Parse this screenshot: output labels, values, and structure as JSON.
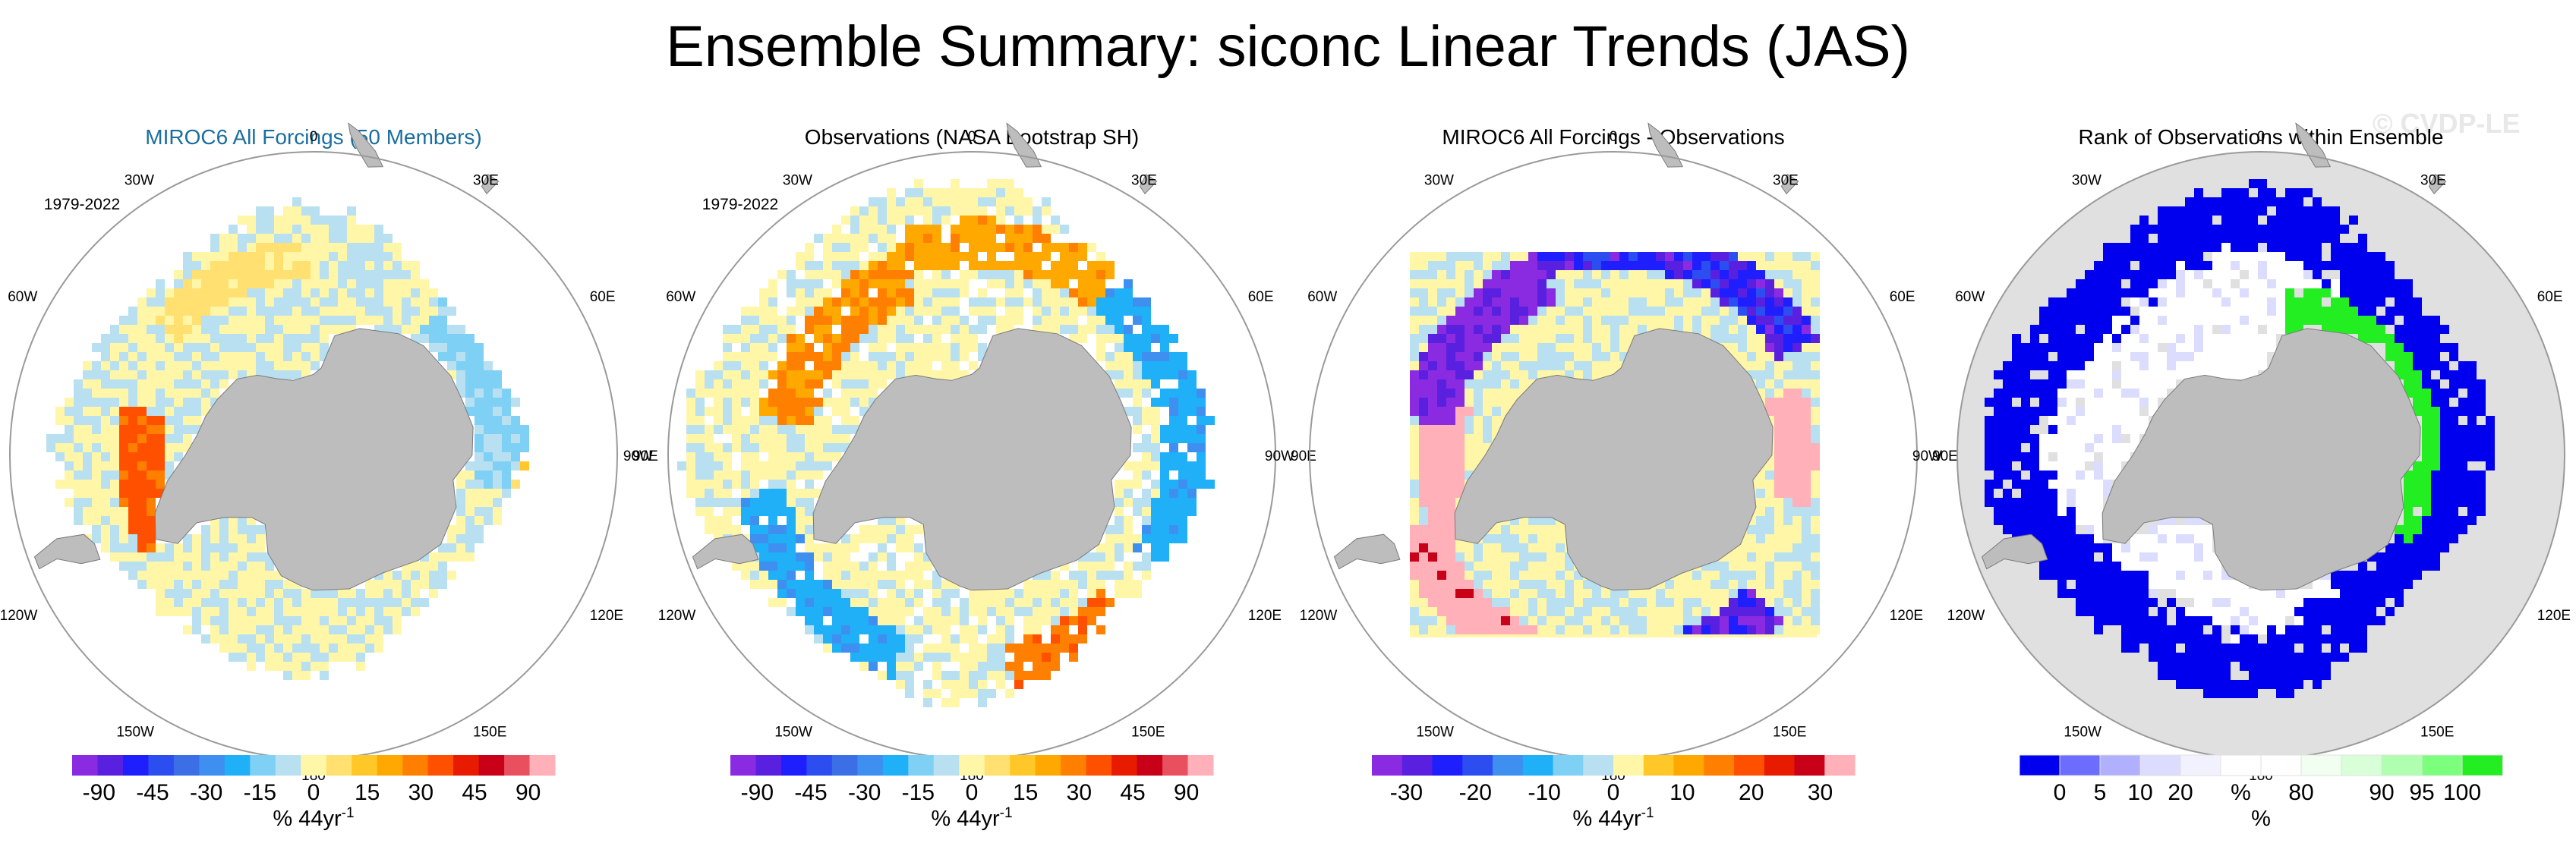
{
  "title": "Ensemble Summary: siconc Linear Trends (JAS)",
  "watermark": "© CVDP-LE",
  "colors": {
    "land": "#bdbdbd",
    "circle": "#9a9a9a",
    "title_blue": "#1a6e9e",
    "panel4_background": "#e0e0e0"
  },
  "chart_data": [
    {
      "type": "heatmap",
      "title": "MIROC6 All Forcings (50 Members)",
      "title_color": "#1a6e9e",
      "period": "1979-2022",
      "longitude_labels": [
        "0",
        "30E",
        "60E",
        "90E",
        "120E",
        "150E",
        "180",
        "150W",
        "120W",
        "90W",
        "60W",
        "30W"
      ],
      "colorbar": {
        "colors": [
          "#8a2be2",
          "#5a20e0",
          "#1e1eff",
          "#2c4ef0",
          "#3c6fe6",
          "#3e8ff0",
          "#20b0f8",
          "#7fd0f5",
          "#b8e0f0",
          "#fff6a8",
          "#ffe070",
          "#ffc828",
          "#ffa800",
          "#ff8000",
          "#ff5000",
          "#e81a00",
          "#c80018",
          "#e85060",
          "#ffb0b8"
        ],
        "tick_labels": [
          "-90",
          "-45",
          "-30",
          "-15",
          "0",
          "15",
          "30",
          "45",
          "90"
        ],
        "label": "% 44yr",
        "label_superscript": "-1"
      },
      "field": {
        "background": "none",
        "base_value": 0,
        "zones": [
          {
            "lat_min": -68,
            "lat_max": -61,
            "lon_min": 255,
            "lon_max": 300,
            "value": 45
          },
          {
            "lat_min": -66,
            "lat_max": -58,
            "lon_min": 80,
            "lon_max": 140,
            "value": -15
          },
          {
            "lat_min": -60,
            "lat_max": -55,
            "lon_min": 60,
            "lon_max": 90,
            "value": 15
          },
          {
            "lat_min": -64,
            "lat_max": -58,
            "lon_min": 180,
            "lon_max": 230,
            "value": 8
          }
        ]
      }
    },
    {
      "type": "heatmap",
      "title": "Observations (NASA Bootstrap SH)",
      "title_color": "#000000",
      "period": "1979-2022",
      "longitude_labels": [
        "0",
        "30E",
        "60E",
        "90E",
        "120E",
        "150E",
        "180",
        "150W",
        "120W",
        "90W",
        "60W",
        "30W"
      ],
      "colorbar": {
        "colors": [
          "#8a2be2",
          "#5a20e0",
          "#1e1eff",
          "#2c4ef0",
          "#3c6fe6",
          "#3e8ff0",
          "#20b0f8",
          "#7fd0f5",
          "#b8e0f0",
          "#fff6a8",
          "#ffe070",
          "#ffc828",
          "#ffa800",
          "#ff8000",
          "#ff5000",
          "#e81a00",
          "#c80018",
          "#e85060",
          "#ffb0b8"
        ],
        "tick_labels": [
          "-90",
          "-45",
          "-30",
          "-15",
          "0",
          "15",
          "30",
          "45",
          "90"
        ],
        "label": "% 44yr",
        "label_superscript": "-1"
      },
      "field": {
        "background": "none",
        "base_value": 0,
        "zones": [
          {
            "lat_min": -62,
            "lat_max": -54,
            "lon_min": 10,
            "lon_max": 45,
            "value": 40
          },
          {
            "lat_min": -62,
            "lat_max": -54,
            "lon_min": 60,
            "lon_max": 140,
            "value": -30
          },
          {
            "lat_min": -62,
            "lat_max": -55,
            "lon_min": 140,
            "lon_max": 200,
            "value": 30
          },
          {
            "lat_min": -66,
            "lat_max": -58,
            "lon_min": 200,
            "lon_max": 260,
            "value": 35
          },
          {
            "lat_min": -62,
            "lat_max": -55,
            "lon_min": 280,
            "lon_max": 340,
            "value": -30
          }
        ]
      }
    },
    {
      "type": "heatmap",
      "title": "MIROC6 All Forcings - Observations",
      "title_color": "#000000",
      "longitude_labels": [
        "0",
        "30E",
        "60E",
        "90E",
        "120E",
        "150E",
        "180",
        "150W",
        "120W",
        "90W",
        "60W",
        "30W"
      ],
      "colorbar": {
        "colors": [
          "#8a2be2",
          "#5a20e0",
          "#1e1eff",
          "#2c4ef0",
          "#3e8ff0",
          "#20b0f8",
          "#7fd0f5",
          "#b8e0f0",
          "#fff6a8",
          "#ffc828",
          "#ffa800",
          "#ff8000",
          "#ff5000",
          "#e81a00",
          "#c80018",
          "#ffb0b8"
        ],
        "tick_labels": [
          "-30",
          "-20",
          "-10",
          "0",
          "10",
          "20",
          "30"
        ],
        "label": "% 44yr",
        "label_superscript": "-1"
      },
      "field": {
        "background": "square",
        "base_value": 0,
        "zones": [
          {
            "lat_min": -68,
            "lat_max": -61,
            "lon_min": 250,
            "lon_max": 300,
            "value": 35
          },
          {
            "lat_min": -62,
            "lat_max": -55,
            "lon_min": 10,
            "lon_max": 45,
            "value": -25
          },
          {
            "lat_min": -66,
            "lat_max": -60,
            "lon_min": 75,
            "lon_max": 110,
            "value": 33
          },
          {
            "lat_min": -62,
            "lat_max": -55,
            "lon_min": 120,
            "lon_max": 200,
            "value": -22
          },
          {
            "lat_min": -66,
            "lat_max": -58,
            "lon_min": 200,
            "lon_max": 260,
            "value": -28
          },
          {
            "lat_min": -62,
            "lat_max": -55,
            "lon_min": 290,
            "lon_max": 345,
            "value": 30
          }
        ]
      }
    },
    {
      "type": "heatmap",
      "title": "Rank of Observations within Ensemble",
      "title_color": "#000000",
      "longitude_labels": [
        "0",
        "30E",
        "60E",
        "90E",
        "120E",
        "150E",
        "180",
        "150W",
        "120W",
        "90W",
        "60W",
        "30W"
      ],
      "colorbar": {
        "colors": [
          "#0000ee",
          "#6c6cff",
          "#b0b0ff",
          "#dcdcff",
          "#f2f2ff",
          "#ffffff",
          "#ffffff",
          "#f0fff0",
          "#d8ffd8",
          "#b0ffb0",
          "#7cff7c",
          "#22ee22"
        ],
        "tick_labels": [
          "0",
          "5",
          "10",
          "20",
          "%",
          "80",
          "90",
          "95",
          "100"
        ],
        "label": "%",
        "label_superscript": ""
      },
      "field": {
        "background": "circle",
        "base_value": 0,
        "zones": [
          {
            "lat_min": -69,
            "lat_max": -64,
            "lon_min": 60,
            "lon_max": 170,
            "value": 100
          },
          {
            "lat_min": -72,
            "lat_max": -64,
            "lon_min": 250,
            "lon_max": 320,
            "value": 50
          }
        ]
      }
    }
  ]
}
